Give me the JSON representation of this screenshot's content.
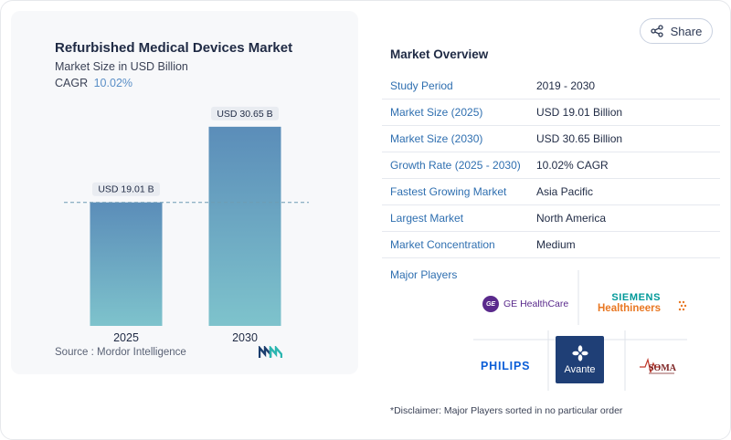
{
  "share": {
    "label": "Share",
    "icon": "share-icon"
  },
  "chart_header": {
    "title": "Refurbished Medical Devices Market",
    "subtitle": "Market Size in USD Billion",
    "cagr_label": "CAGR",
    "cagr_value": "10.02%"
  },
  "chart_data": {
    "type": "bar",
    "categories": [
      "2025",
      "2030"
    ],
    "values": [
      19.01,
      30.65
    ],
    "data_labels": [
      "USD 19.01 B",
      "USD 30.65 B"
    ],
    "title": "Refurbished Medical Devices Market",
    "ylabel": "Market Size in USD Billion",
    "ylim": [
      0,
      34
    ],
    "grid": false,
    "reference_line_at": 19.01
  },
  "source": {
    "text": "Source :  Mordor Intelligence"
  },
  "market_overview": {
    "title": "Market Overview",
    "rows": [
      {
        "label": "Study Period",
        "value": "2019 - 2030"
      },
      {
        "label": "Market Size (2025)",
        "value": "USD 19.01 Billion"
      },
      {
        "label": "Market Size (2030)",
        "value": "USD 30.65 Billion"
      },
      {
        "label": "Growth Rate (2025 - 2030)",
        "value": "10.02% CAGR"
      },
      {
        "label": "Fastest Growing Market",
        "value": "Asia Pacific"
      },
      {
        "label": "Largest Market",
        "value": "North America"
      },
      {
        "label": "Market Concentration",
        "value": "Medium"
      }
    ],
    "major_players_label": "Major Players"
  },
  "players": {
    "ge": "GE HealthCare",
    "siemens_line1": "SIEMENS",
    "siemens_line2": "Healthineers",
    "philips": "PHILIPS",
    "avante": "Avante",
    "soma": "SOMA"
  },
  "disclaimer": "*Disclaimer: Major Players sorted in no particular order",
  "colors": {
    "bar_top": "#5b8db9",
    "bar_bottom": "#7ec3cc",
    "accent": "#2f6fb0"
  }
}
